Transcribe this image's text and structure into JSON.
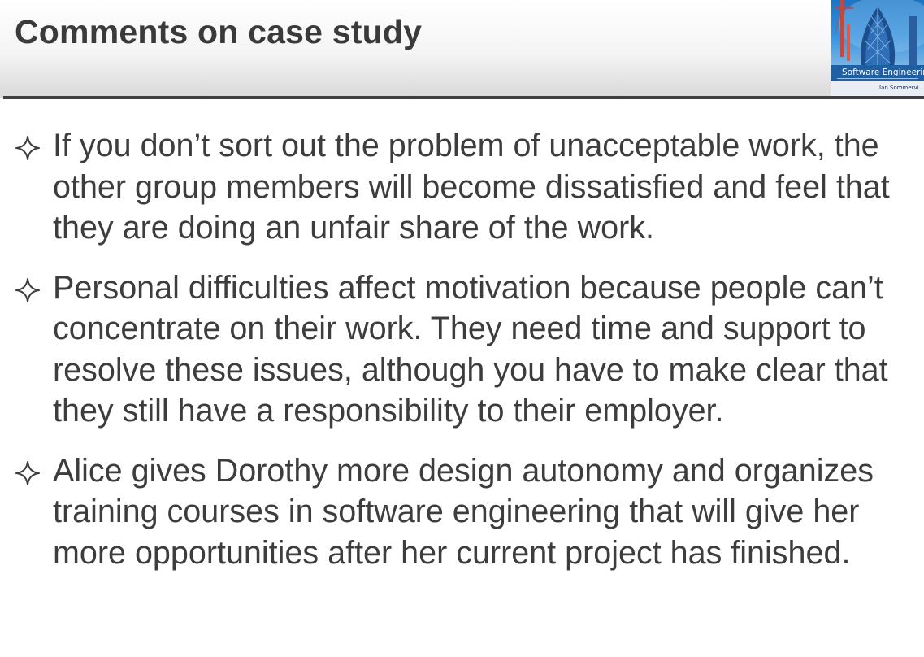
{
  "slide": {
    "title": "Comments on case study",
    "cover": {
      "book_title": "Software Engineerin",
      "author": "Ian Sommervi"
    },
    "bullet_icon": "four-point-star-outline-icon",
    "bullets": [
      {
        "text": "If you don’t sort out the problem of unacceptable work, the other group members will become dissatisfied and feel that they are doing an unfair share of the work."
      },
      {
        "text": "Personal difficulties affect motivation because people can’t concentrate on their work. They need time and support to resolve these issues, although you have to make clear that they still have a responsibility to their employer."
      },
      {
        "text": "Alice gives Dorothy more design autonomy and organizes training courses in software engineering that will give her more opportunities after her current project has finished."
      }
    ]
  },
  "colors": {
    "title_text": "#3a3a3a",
    "body_text": "#3d3d3d",
    "header_rule": "#3f3f3f",
    "cover_blue": "#1c74c3"
  }
}
